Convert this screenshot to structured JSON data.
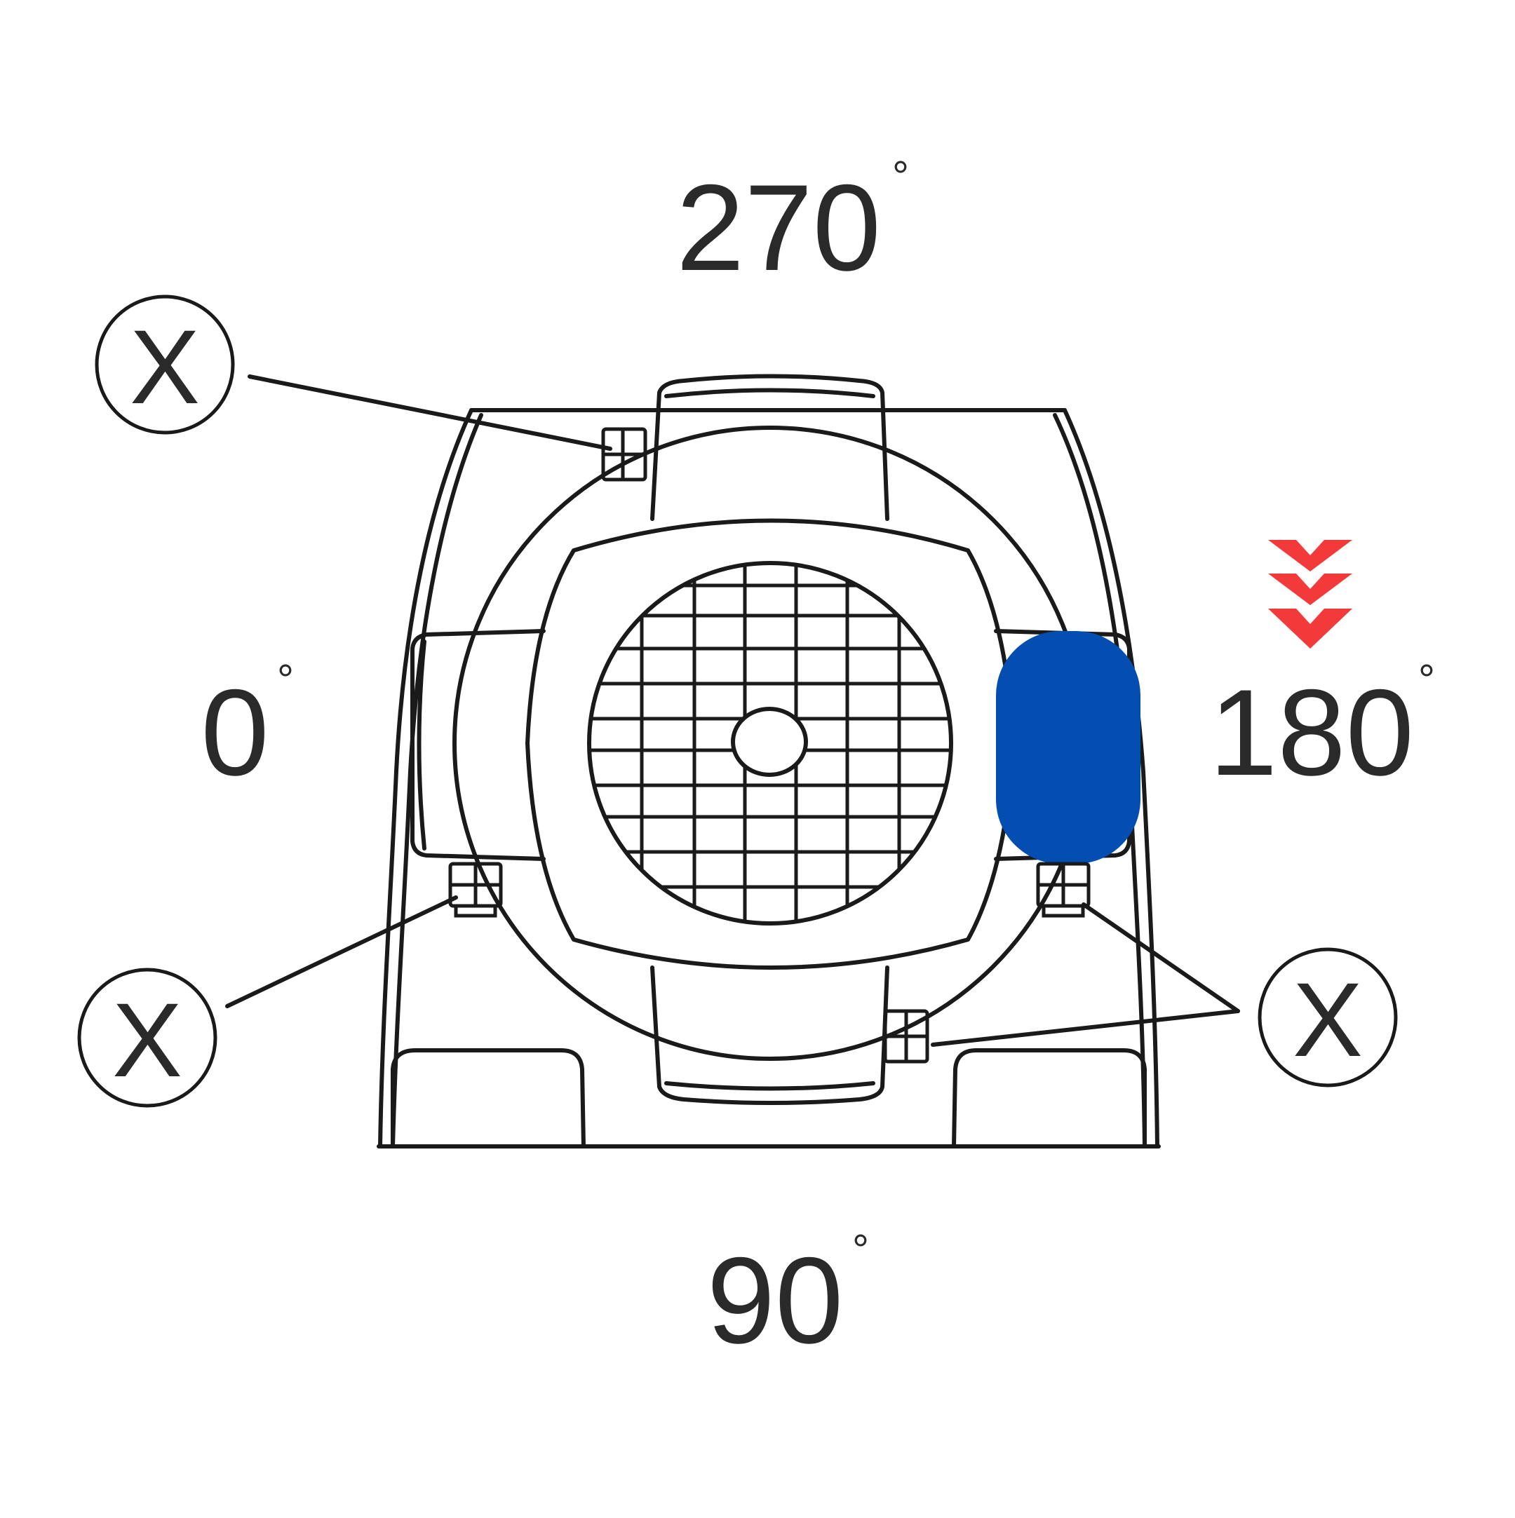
{
  "diagram": {
    "angles": {
      "top": {
        "value": "270",
        "unit": "°"
      },
      "left": {
        "value": "0",
        "unit": "°"
      },
      "right": {
        "value": "180",
        "unit": "°"
      },
      "bottom": {
        "value": "90",
        "unit": "°"
      }
    },
    "markers": [
      {
        "id": "upper-left",
        "label": "X"
      },
      {
        "id": "lower-left",
        "label": "X"
      },
      {
        "id": "lower-right",
        "label": "X"
      }
    ],
    "colors": {
      "terminal_box": "#034EB0",
      "arrows": "#F23A3A",
      "lines": "#1a1a1a"
    },
    "icons": [
      "triple-chevron-down-icon",
      "x-marker-icon"
    ]
  }
}
